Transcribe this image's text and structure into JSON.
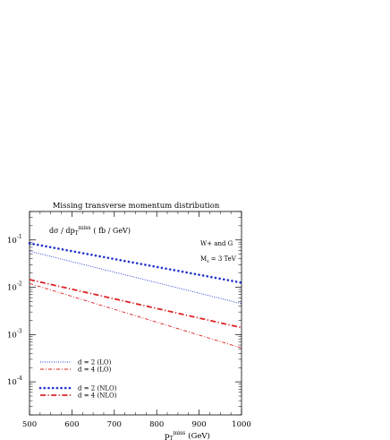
{
  "chart_data": {
    "type": "line",
    "title": "Missing transverse momentum distribution",
    "ylabel": {
      "main": "dσ / dp",
      "sub": "T",
      "sup": "miss",
      "unit": "( fb / GeV)"
    },
    "xlabel": {
      "main": "p",
      "sub": "T",
      "sup": "miss",
      "unit": "(GeV)"
    },
    "annotation": {
      "line1": "W+ and G",
      "line2_main": "M",
      "line2_sub": "s",
      "line2_rest": "= 3 TeV"
    },
    "xlim": [
      500,
      1000
    ],
    "ylim": [
      2e-05,
      0.4
    ],
    "yscale": "log",
    "xticks": [
      500,
      600,
      700,
      800,
      900,
      1000
    ],
    "xtick_labels": [
      "500",
      "600",
      "700",
      "800",
      "900",
      "1000"
    ],
    "yticks": [
      {
        "value": 0.1,
        "base": "10",
        "exp": "-1"
      },
      {
        "value": 0.01,
        "base": "10",
        "exp": "-2"
      },
      {
        "value": 0.001,
        "base": "10",
        "exp": "-3"
      },
      {
        "value": 0.0001,
        "base": "10",
        "exp": "-4"
      }
    ],
    "series": [
      {
        "name": "d = 2 (LO)",
        "color": "#2233cc",
        "style": "dotted",
        "x": [
          500,
          1000
        ],
        "y": [
          0.058,
          0.0045
        ]
      },
      {
        "name": "d = 4 (LO)",
        "color": "#dd2222",
        "style": "dashdot",
        "x": [
          500,
          1000
        ],
        "y": [
          0.012,
          0.00052
        ]
      },
      {
        "name": "d = 2 (NLO)",
        "color": "#2233cc",
        "style": "thick-dotted",
        "x": [
          500,
          1000
        ],
        "y": [
          0.085,
          0.0125
        ]
      },
      {
        "name": "d = 4 (NLO)",
        "color": "#dd2222",
        "style": "thick-dashdot",
        "x": [
          500,
          1000
        ],
        "y": [
          0.0145,
          0.0014
        ]
      }
    ],
    "legend_position": "bottom-left",
    "grid": false
  }
}
